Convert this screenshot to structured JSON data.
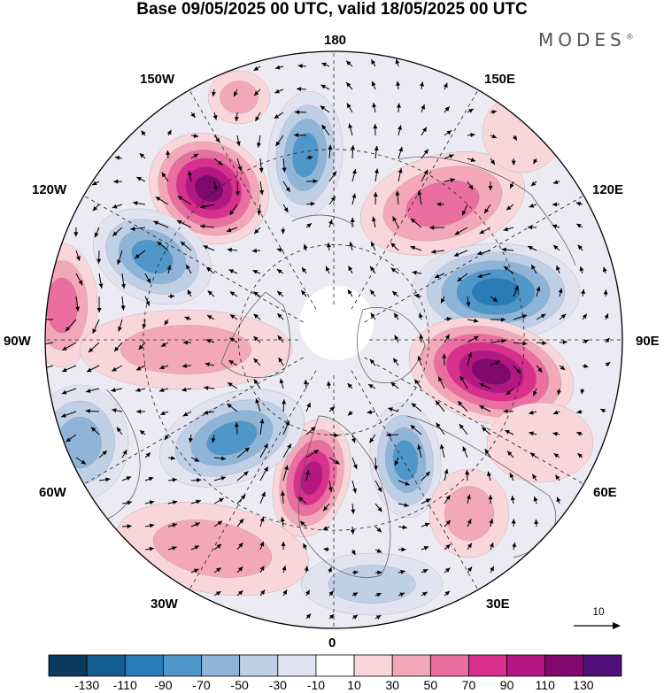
{
  "title": "Base 09/05/2025 00 UTC, valid 18/05/2025 00 UTC",
  "brand": "MODES",
  "brand_mark": "®",
  "reference_vector_label": "10",
  "map": {
    "projection": "north polar stereographic",
    "longitude_labels": {
      "top": "180",
      "bottom": "0",
      "left": "90W",
      "right": "90E",
      "upper_left_1": "150W",
      "upper_left_2": "120W",
      "upper_right_1": "150E",
      "upper_right_2": "120E",
      "lower_left_1": "60W",
      "lower_left_2": "30W",
      "lower_right_1": "60E",
      "lower_right_2": "30E"
    }
  },
  "colorbar": {
    "tick_labels": [
      "-130",
      "-110",
      "-90",
      "-70",
      "-50",
      "-30",
      "-10",
      "10",
      "30",
      "50",
      "70",
      "90",
      "110",
      "130"
    ],
    "colors": [
      "#0b3a5e",
      "#165f92",
      "#2b7bb6",
      "#4f97c9",
      "#8eb4d8",
      "#bfcfe6",
      "#e2e3f1",
      "#ffffff",
      "#f9d6da",
      "#f2a8b8",
      "#ea6ea0",
      "#d9308e",
      "#b41682",
      "#80096e",
      "#4f1178"
    ]
  }
}
